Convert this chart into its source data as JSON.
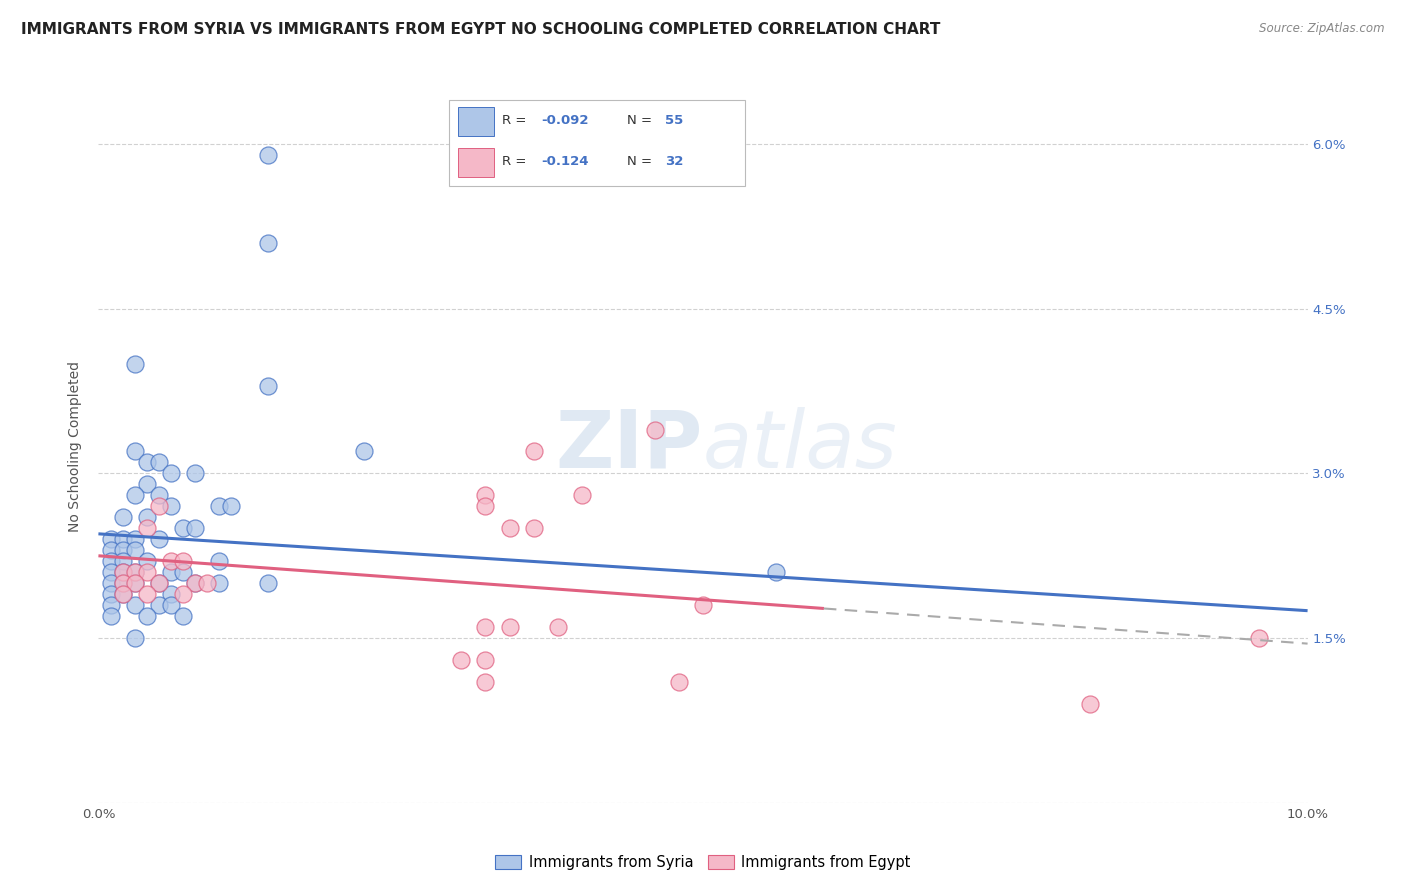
{
  "title": "IMMIGRANTS FROM SYRIA VS IMMIGRANTS FROM EGYPT NO SCHOOLING COMPLETED CORRELATION CHART",
  "source": "Source: ZipAtlas.com",
  "ylabel": "No Schooling Completed",
  "xlim": [
    0.0,
    0.1
  ],
  "ylim": [
    0.0,
    0.065
  ],
  "syria_color": "#aec6e8",
  "egypt_color": "#f5b8c8",
  "syria_line_color": "#4472c4",
  "egypt_line_color": "#e06080",
  "syria_scatter": [
    [
      0.014,
      0.059
    ],
    [
      0.014,
      0.051
    ],
    [
      0.003,
      0.04
    ],
    [
      0.014,
      0.038
    ],
    [
      0.003,
      0.032
    ],
    [
      0.022,
      0.032
    ],
    [
      0.004,
      0.031
    ],
    [
      0.005,
      0.031
    ],
    [
      0.006,
      0.03
    ],
    [
      0.008,
      0.03
    ],
    [
      0.004,
      0.029
    ],
    [
      0.005,
      0.028
    ],
    [
      0.003,
      0.028
    ],
    [
      0.006,
      0.027
    ],
    [
      0.01,
      0.027
    ],
    [
      0.011,
      0.027
    ],
    [
      0.002,
      0.026
    ],
    [
      0.004,
      0.026
    ],
    [
      0.007,
      0.025
    ],
    [
      0.008,
      0.025
    ],
    [
      0.001,
      0.024
    ],
    [
      0.002,
      0.024
    ],
    [
      0.003,
      0.024
    ],
    [
      0.005,
      0.024
    ],
    [
      0.001,
      0.023
    ],
    [
      0.002,
      0.023
    ],
    [
      0.003,
      0.023
    ],
    [
      0.001,
      0.022
    ],
    [
      0.002,
      0.022
    ],
    [
      0.004,
      0.022
    ],
    [
      0.01,
      0.022
    ],
    [
      0.001,
      0.021
    ],
    [
      0.002,
      0.021
    ],
    [
      0.003,
      0.021
    ],
    [
      0.006,
      0.021
    ],
    [
      0.007,
      0.021
    ],
    [
      0.001,
      0.02
    ],
    [
      0.002,
      0.02
    ],
    [
      0.003,
      0.02
    ],
    [
      0.005,
      0.02
    ],
    [
      0.008,
      0.02
    ],
    [
      0.01,
      0.02
    ],
    [
      0.014,
      0.02
    ],
    [
      0.001,
      0.019
    ],
    [
      0.002,
      0.019
    ],
    [
      0.006,
      0.019
    ],
    [
      0.001,
      0.018
    ],
    [
      0.003,
      0.018
    ],
    [
      0.005,
      0.018
    ],
    [
      0.006,
      0.018
    ],
    [
      0.001,
      0.017
    ],
    [
      0.004,
      0.017
    ],
    [
      0.007,
      0.017
    ],
    [
      0.003,
      0.015
    ],
    [
      0.056,
      0.021
    ]
  ],
  "egypt_scatter": [
    [
      0.046,
      0.034
    ],
    [
      0.036,
      0.032
    ],
    [
      0.032,
      0.028
    ],
    [
      0.04,
      0.028
    ],
    [
      0.005,
      0.027
    ],
    [
      0.032,
      0.027
    ],
    [
      0.004,
      0.025
    ],
    [
      0.034,
      0.025
    ],
    [
      0.036,
      0.025
    ],
    [
      0.006,
      0.022
    ],
    [
      0.007,
      0.022
    ],
    [
      0.002,
      0.021
    ],
    [
      0.003,
      0.021
    ],
    [
      0.004,
      0.021
    ],
    [
      0.002,
      0.02
    ],
    [
      0.003,
      0.02
    ],
    [
      0.005,
      0.02
    ],
    [
      0.008,
      0.02
    ],
    [
      0.009,
      0.02
    ],
    [
      0.002,
      0.019
    ],
    [
      0.004,
      0.019
    ],
    [
      0.007,
      0.019
    ],
    [
      0.05,
      0.018
    ],
    [
      0.032,
      0.016
    ],
    [
      0.034,
      0.016
    ],
    [
      0.038,
      0.016
    ],
    [
      0.03,
      0.013
    ],
    [
      0.032,
      0.013
    ],
    [
      0.032,
      0.011
    ],
    [
      0.048,
      0.011
    ],
    [
      0.082,
      0.009
    ],
    [
      0.096,
      0.015
    ]
  ],
  "syria_trend_x": [
    0.0,
    0.1
  ],
  "syria_trend_y": [
    0.0245,
    0.0175
  ],
  "egypt_trend_x": [
    0.0,
    0.1
  ],
  "egypt_trend_y": [
    0.0225,
    0.0145
  ],
  "background_color": "#ffffff",
  "grid_color": "#cccccc",
  "watermark": "ZIPatlas",
  "title_fontsize": 11,
  "axis_fontsize": 10,
  "tick_fontsize": 9.5
}
